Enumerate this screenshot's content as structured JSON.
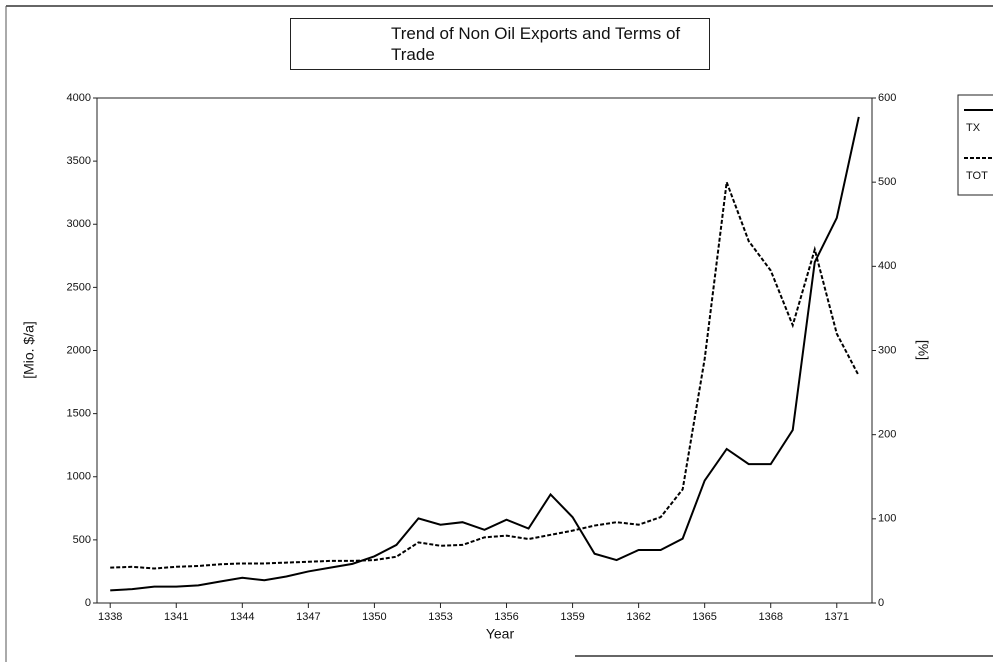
{
  "chart_data": {
    "type": "line",
    "title": "Trend of Non Oil Exports and Terms of Trade",
    "xlabel": "Year",
    "ylabel": "[Mio. $/a]",
    "y2label": "[%]",
    "x": [
      1338,
      1339,
      1340,
      1341,
      1342,
      1343,
      1344,
      1345,
      1346,
      1347,
      1348,
      1349,
      1350,
      1351,
      1352,
      1353,
      1354,
      1355,
      1356,
      1357,
      1358,
      1359,
      1360,
      1361,
      1362,
      1363,
      1364,
      1365,
      1366,
      1367,
      1368,
      1369,
      1370,
      1371,
      1372
    ],
    "series": [
      {
        "name": "TX",
        "color": "#000000",
        "style": "solid",
        "axis": "y",
        "values": [
          100,
          110,
          130,
          130,
          140,
          170,
          200,
          180,
          210,
          250,
          280,
          310,
          370,
          460,
          670,
          620,
          640,
          580,
          660,
          590,
          860,
          680,
          390,
          340,
          420,
          420,
          510,
          970,
          1220,
          1100,
          1100,
          1370,
          2700,
          3050,
          3850
        ]
      },
      {
        "name": "TOT",
        "color": "#000000",
        "style": "dashed",
        "axis": "y2",
        "values": [
          42,
          43,
          41,
          43,
          44,
          46,
          47,
          47,
          48,
          49,
          50,
          50,
          51,
          55,
          72,
          68,
          69,
          78,
          80,
          76,
          81,
          86,
          92,
          96,
          93,
          102,
          135,
          290,
          500,
          430,
          395,
          330,
          420,
          320,
          270
        ]
      }
    ],
    "xlim": [
      1337.4,
      1372.6
    ],
    "xticks": [
      1338,
      1341,
      1344,
      1347,
      1350,
      1353,
      1356,
      1359,
      1362,
      1365,
      1368,
      1371
    ],
    "ylim": [
      0,
      4000
    ],
    "yticks": [
      0,
      500,
      1000,
      1500,
      2000,
      2500,
      3000,
      3500,
      4000
    ],
    "y2lim": [
      0,
      600
    ],
    "y2ticks": [
      0,
      100,
      200,
      300,
      400,
      500,
      600
    ],
    "legend": "right"
  }
}
